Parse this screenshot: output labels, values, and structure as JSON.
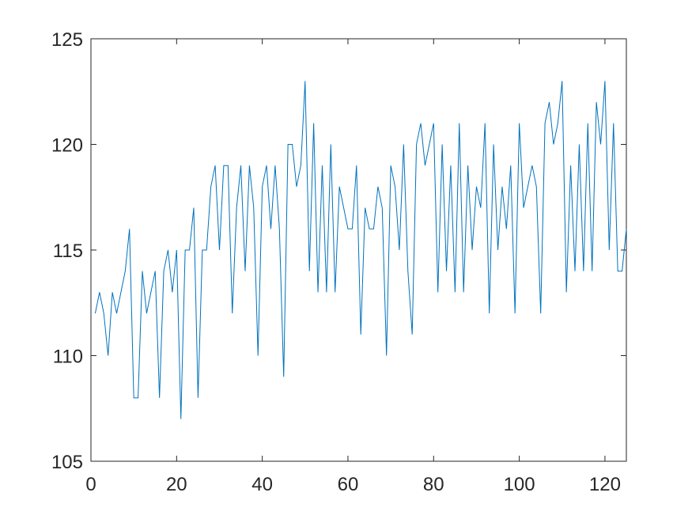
{
  "chart_data": {
    "type": "line",
    "x": [
      1,
      2,
      3,
      4,
      5,
      6,
      7,
      8,
      9,
      10,
      11,
      12,
      13,
      14,
      15,
      16,
      17,
      18,
      19,
      20,
      21,
      22,
      23,
      24,
      25,
      26,
      27,
      28,
      29,
      30,
      31,
      32,
      33,
      34,
      35,
      36,
      37,
      38,
      39,
      40,
      41,
      42,
      43,
      44,
      45,
      46,
      47,
      48,
      49,
      50,
      51,
      52,
      53,
      54,
      55,
      56,
      57,
      58,
      59,
      60,
      61,
      62,
      63,
      64,
      65,
      66,
      67,
      68,
      69,
      70,
      71,
      72,
      73,
      74,
      75,
      76,
      77,
      78,
      79,
      80,
      81,
      82,
      83,
      84,
      85,
      86,
      87,
      88,
      89,
      90,
      91,
      92,
      93,
      94,
      95,
      96,
      97,
      98,
      99,
      100,
      101,
      102,
      103,
      104,
      105,
      106,
      107,
      108,
      109,
      110,
      111,
      112,
      113,
      114,
      115,
      116,
      117,
      118,
      119,
      120,
      121,
      122,
      123,
      124,
      125
    ],
    "series": [
      {
        "color": "#0072bd",
        "values": [
          112,
          113,
          112,
          110,
          113,
          112,
          113,
          114,
          116,
          108,
          108,
          114,
          112,
          113,
          114,
          108,
          114,
          115,
          113,
          115,
          107,
          115,
          115,
          117,
          108,
          115,
          115,
          118,
          119,
          115,
          119,
          119,
          112,
          117,
          119,
          114,
          119,
          117,
          110,
          118,
          119,
          116,
          119,
          116,
          109,
          120,
          120,
          118,
          119,
          123,
          114,
          121,
          113,
          119,
          113,
          120,
          113,
          118,
          117,
          116,
          116,
          119,
          111,
          117,
          116,
          116,
          118,
          117,
          110,
          119,
          118,
          115,
          120,
          114,
          111,
          120,
          121,
          119,
          120,
          121,
          113,
          120,
          114,
          119,
          113,
          121,
          113,
          119,
          115,
          118,
          117,
          121,
          112,
          120,
          115,
          118,
          116,
          119,
          112,
          121,
          117,
          118,
          119,
          118,
          112,
          121,
          122,
          120,
          121,
          123,
          113,
          119,
          114,
          120,
          114,
          121,
          114,
          122,
          120,
          123,
          115,
          121,
          114,
          114,
          116
        ]
      }
    ],
    "xlim": [
      0,
      125
    ],
    "xticks": [
      0,
      20,
      40,
      60,
      80,
      100,
      120
    ],
    "ylim": [
      105,
      125
    ],
    "yticks": [
      105,
      110,
      115,
      120,
      125
    ]
  }
}
